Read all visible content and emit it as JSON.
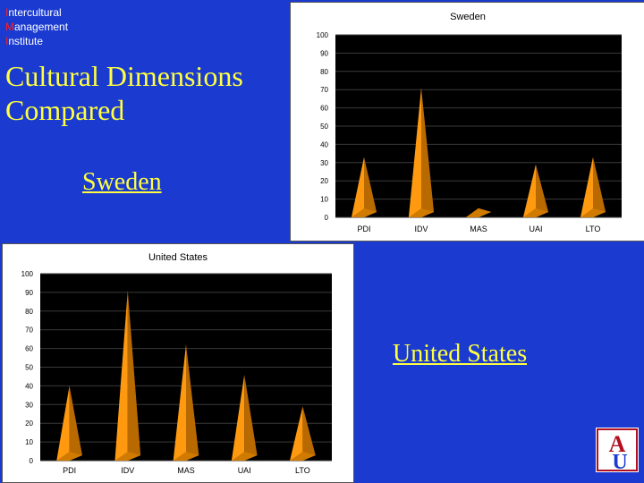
{
  "brand": {
    "line1_cap": "I",
    "line1_rest": "ntercultural",
    "line2_cap": "M",
    "line2_rest": "anagement",
    "line3_cap": "I",
    "line3_rest": "nstitute"
  },
  "title": {
    "line1": "Cultural Dimensions",
    "line2": "Compared"
  },
  "links": {
    "sweden": "Sweden",
    "us": "United States"
  },
  "colors": {
    "background": "#1a3ad0",
    "title": "#ffff40",
    "bar": "#ff9a10",
    "bar_shade": "#b86a00",
    "plot_bg": "#000000"
  },
  "logo": {
    "letters": "AU",
    "icon": "american-university-logo"
  },
  "chart_data": [
    {
      "type": "bar",
      "title": "Sweden",
      "categories": [
        "PDI",
        "IDV",
        "MAS",
        "UAI",
        "LTO"
      ],
      "values": [
        33,
        71,
        5,
        29,
        33
      ],
      "ylim": [
        0,
        100
      ],
      "yticks": [
        0,
        10,
        20,
        30,
        40,
        50,
        60,
        70,
        80,
        90,
        100
      ],
      "grid": true
    },
    {
      "type": "bar",
      "title": "United States",
      "categories": [
        "PDI",
        "IDV",
        "MAS",
        "UAI",
        "LTO"
      ],
      "values": [
        40,
        91,
        62,
        46,
        29
      ],
      "ylim": [
        0,
        100
      ],
      "yticks": [
        0,
        10,
        20,
        30,
        40,
        50,
        60,
        70,
        80,
        90,
        100
      ],
      "grid": true
    }
  ]
}
